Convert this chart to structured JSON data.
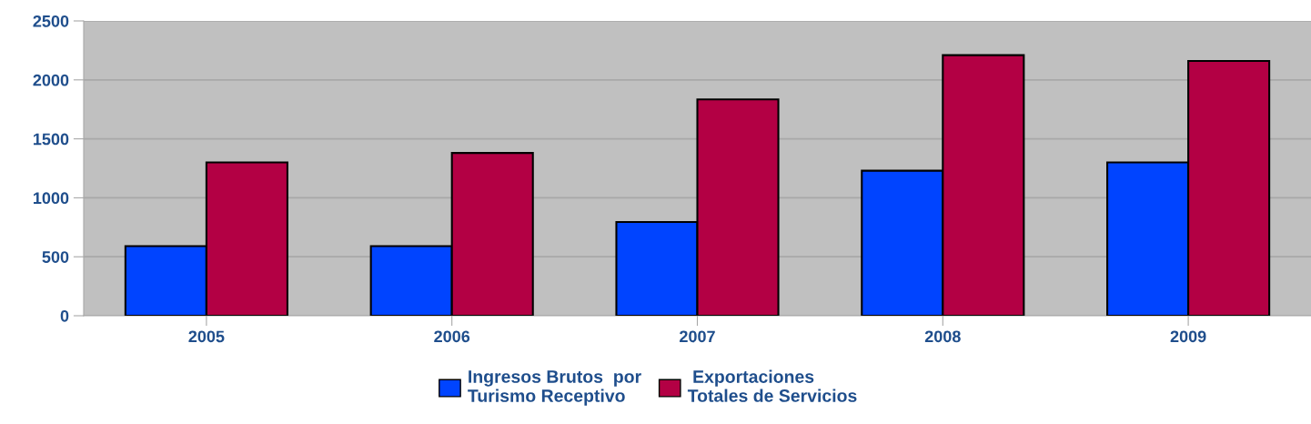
{
  "chart_data": {
    "type": "bar",
    "categories": [
      "2005",
      "2006",
      "2007",
      "2008",
      "2009"
    ],
    "series": [
      {
        "name": "Ingresos Brutos  por\nTurismo Receptivo",
        "color": "#0044ff",
        "values": [
          590,
          590,
          795,
          1230,
          1300
        ]
      },
      {
        "name": " Exportaciones\nTotales de Servicios",
        "color": "#b30044",
        "values": [
          1300,
          1380,
          1835,
          2210,
          2160
        ]
      }
    ],
    "ylim": [
      0,
      2500
    ],
    "yticks": [
      0,
      500,
      1000,
      1500,
      2000,
      2500
    ],
    "grid": "y",
    "legend": "bottom"
  }
}
